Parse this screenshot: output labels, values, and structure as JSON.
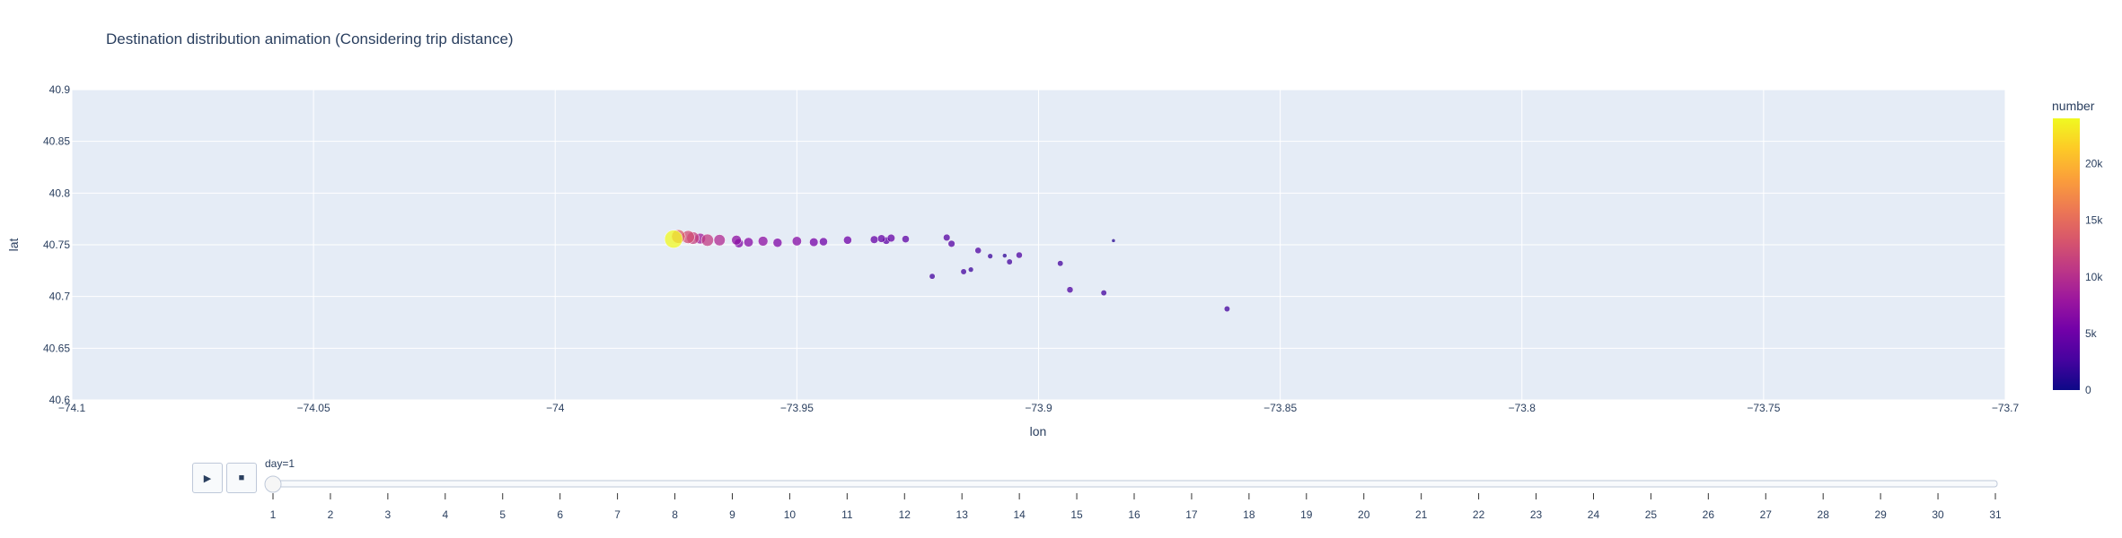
{
  "chart_data": {
    "type": "scatter",
    "title": "Destination distribution animation (Considering trip distance)",
    "xlabel": "lon",
    "ylabel": "lat",
    "xlim": [
      -74.1,
      -73.7
    ],
    "ylim": [
      40.6,
      40.9
    ],
    "x_ticks": [
      -74.1,
      -74.05,
      -74,
      -73.95,
      -73.9,
      -73.85,
      -73.8,
      -73.75,
      -73.7
    ],
    "x_tick_labels": [
      "−74.1",
      "−74.05",
      "−74",
      "−73.95",
      "−73.9",
      "−73.85",
      "−73.8",
      "−73.75",
      "−73.7"
    ],
    "y_ticks": [
      40.6,
      40.65,
      40.7,
      40.75,
      40.8,
      40.85,
      40.9
    ],
    "y_tick_labels": [
      "40.6",
      "40.65",
      "40.7",
      "40.75",
      "40.8",
      "40.85",
      "40.9"
    ],
    "grid": true,
    "colorbar": {
      "title": "number",
      "range": [
        0,
        24000
      ],
      "ticks": [
        0,
        5000,
        10000,
        15000,
        20000
      ],
      "tick_labels": [
        "0",
        "5k",
        "10k",
        "15k",
        "20k"
      ],
      "colorscale": [
        "#0d0887",
        "#46039f",
        "#7201a8",
        "#9c179e",
        "#bd3786",
        "#d8576b",
        "#ed7953",
        "#fb9f3a",
        "#fdca26",
        "#f0f921"
      ]
    },
    "points": [
      {
        "lon": -73.9755,
        "lat": 40.7555,
        "number": 24000
      },
      {
        "lon": -73.9745,
        "lat": 40.758,
        "number": 14000
      },
      {
        "lon": -73.9725,
        "lat": 40.7575,
        "number": 12500
      },
      {
        "lon": -73.9715,
        "lat": 40.7565,
        "number": 11500
      },
      {
        "lon": -73.97,
        "lat": 40.756,
        "number": 8500
      },
      {
        "lon": -73.9685,
        "lat": 40.7545,
        "number": 11000
      },
      {
        "lon": -73.966,
        "lat": 40.7545,
        "number": 9500
      },
      {
        "lon": -73.9625,
        "lat": 40.7545,
        "number": 7000
      },
      {
        "lon": -73.962,
        "lat": 40.7515,
        "number": 6000
      },
      {
        "lon": -73.96,
        "lat": 40.7525,
        "number": 6500
      },
      {
        "lon": -73.957,
        "lat": 40.7535,
        "number": 7000
      },
      {
        "lon": -73.954,
        "lat": 40.752,
        "number": 6000
      },
      {
        "lon": -73.95,
        "lat": 40.7535,
        "number": 6500
      },
      {
        "lon": -73.9465,
        "lat": 40.7525,
        "number": 5500
      },
      {
        "lon": -73.9445,
        "lat": 40.753,
        "number": 5000
      },
      {
        "lon": -73.9395,
        "lat": 40.7545,
        "number": 5000
      },
      {
        "lon": -73.934,
        "lat": 40.755,
        "number": 4500
      },
      {
        "lon": -73.9325,
        "lat": 40.756,
        "number": 4500
      },
      {
        "lon": -73.9315,
        "lat": 40.754,
        "number": 4000
      },
      {
        "lon": -73.9305,
        "lat": 40.7565,
        "number": 4500
      },
      {
        "lon": -73.9275,
        "lat": 40.7555,
        "number": 4000
      },
      {
        "lon": -73.922,
        "lat": 40.7195,
        "number": 2500
      },
      {
        "lon": -73.919,
        "lat": 40.757,
        "number": 3500
      },
      {
        "lon": -73.918,
        "lat": 40.751,
        "number": 3500
      },
      {
        "lon": -73.9155,
        "lat": 40.724,
        "number": 2500
      },
      {
        "lon": -73.914,
        "lat": 40.726,
        "number": 2000
      },
      {
        "lon": -73.9125,
        "lat": 40.7445,
        "number": 3000
      },
      {
        "lon": -73.91,
        "lat": 40.739,
        "number": 2000
      },
      {
        "lon": -73.907,
        "lat": 40.7395,
        "number": 1500
      },
      {
        "lon": -73.906,
        "lat": 40.7335,
        "number": 2500
      },
      {
        "lon": -73.904,
        "lat": 40.74,
        "number": 3000
      },
      {
        "lon": -73.8955,
        "lat": 40.732,
        "number": 2500
      },
      {
        "lon": -73.8935,
        "lat": 40.7065,
        "number": 3000
      },
      {
        "lon": -73.8865,
        "lat": 40.7035,
        "number": 2500
      },
      {
        "lon": -73.8845,
        "lat": 40.754,
        "number": 1000
      },
      {
        "lon": -73.861,
        "lat": 40.688,
        "number": 2500
      }
    ]
  },
  "animation": {
    "play_icon": "▶",
    "stop_icon": "■",
    "current_label": "day=1",
    "current_value": 1,
    "steps": [
      "1",
      "2",
      "3",
      "4",
      "5",
      "6",
      "7",
      "8",
      "9",
      "10",
      "11",
      "12",
      "13",
      "14",
      "15",
      "16",
      "17",
      "18",
      "19",
      "20",
      "21",
      "22",
      "23",
      "24",
      "25",
      "26",
      "27",
      "28",
      "29",
      "30",
      "31"
    ]
  }
}
